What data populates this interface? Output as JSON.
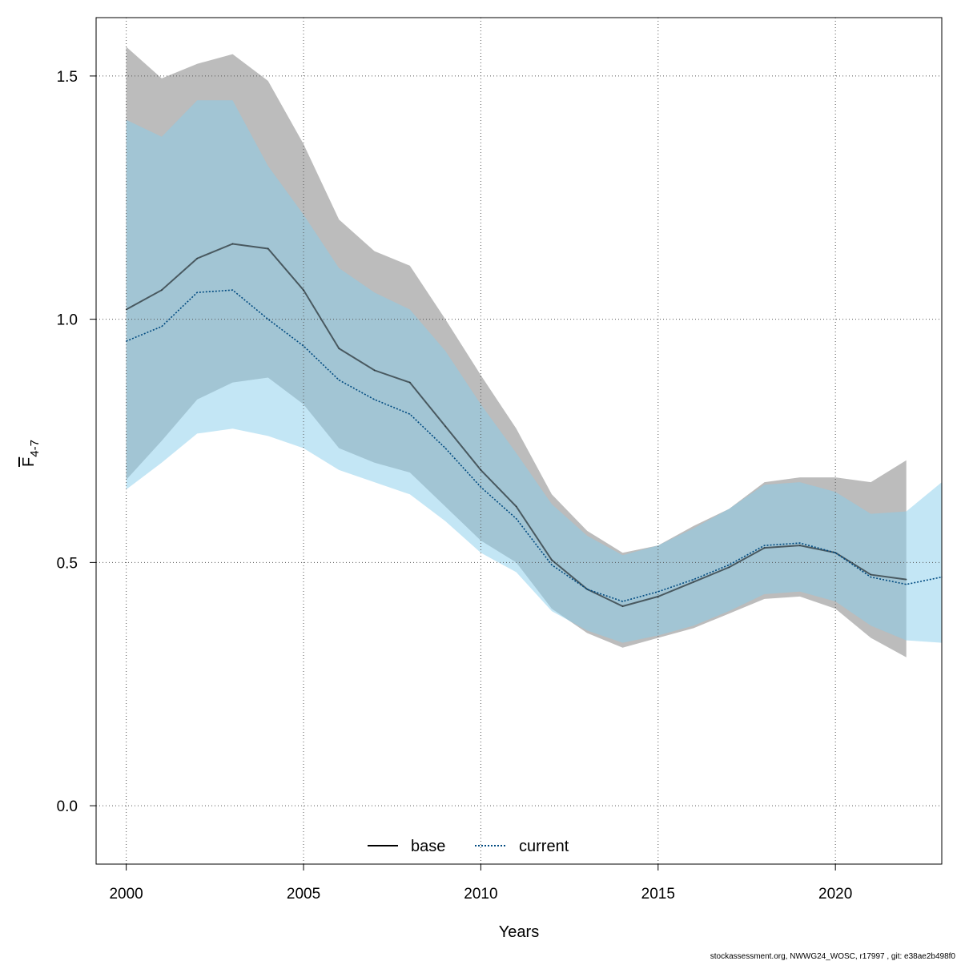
{
  "chart_data": {
    "type": "line",
    "xlabel": "Years",
    "ylabel": {
      "main": "F",
      "sub": "4-7"
    },
    "xlim": [
      1999.15,
      2023
    ],
    "ylim": [
      -0.12,
      1.62
    ],
    "x_ticks": [
      2000,
      2005,
      2010,
      2015,
      2020
    ],
    "x_tick_labels": [
      "2000",
      "2005",
      "2010",
      "2015",
      "2020"
    ],
    "y_ticks": [
      0.0,
      0.5,
      1.0,
      1.5
    ],
    "y_tick_labels": [
      "0.0",
      "0.5",
      "1.0",
      "1.5"
    ],
    "grid": true,
    "legend": {
      "placement": "bottom-center",
      "entries": [
        "base",
        "current"
      ]
    },
    "series": [
      {
        "name": "base",
        "color": "#000000",
        "band_color": "#8c8c8c",
        "line_style": "solid",
        "x": [
          2000,
          2001,
          2002,
          2003,
          2004,
          2005,
          2006,
          2007,
          2008,
          2009,
          2010,
          2011,
          2012,
          2013,
          2014,
          2015,
          2016,
          2017,
          2018,
          2019,
          2020,
          2021,
          2022
        ],
        "values": [
          1.02,
          1.06,
          1.125,
          1.155,
          1.145,
          1.06,
          0.94,
          0.895,
          0.87,
          0.78,
          0.69,
          0.615,
          0.505,
          0.445,
          0.41,
          0.43,
          0.46,
          0.49,
          0.53,
          0.535,
          0.52,
          0.475,
          0.465
        ],
        "lower": [
          0.67,
          0.75,
          0.835,
          0.87,
          0.88,
          0.825,
          0.735,
          0.705,
          0.685,
          0.615,
          0.545,
          0.5,
          0.405,
          0.355,
          0.325,
          0.345,
          0.365,
          0.395,
          0.425,
          0.43,
          0.405,
          0.345,
          0.305
        ],
        "upper": [
          1.56,
          1.495,
          1.525,
          1.545,
          1.49,
          1.36,
          1.205,
          1.14,
          1.11,
          1.0,
          0.885,
          0.775,
          0.64,
          0.565,
          0.52,
          0.535,
          0.575,
          0.61,
          0.665,
          0.675,
          0.675,
          0.665,
          0.71
        ]
      },
      {
        "name": "current",
        "color": "#004a80",
        "band_color": "#87ceeb",
        "line_style": "dotted",
        "x": [
          2000,
          2001,
          2002,
          2003,
          2004,
          2005,
          2006,
          2007,
          2008,
          2009,
          2010,
          2011,
          2012,
          2013,
          2014,
          2015,
          2016,
          2017,
          2018,
          2019,
          2020,
          2021,
          2022,
          2023
        ],
        "values": [
          0.955,
          0.985,
          1.055,
          1.06,
          1.0,
          0.945,
          0.875,
          0.835,
          0.805,
          0.735,
          0.655,
          0.59,
          0.495,
          0.445,
          0.42,
          0.44,
          0.465,
          0.495,
          0.535,
          0.54,
          0.52,
          0.47,
          0.455,
          0.47
        ],
        "lower": [
          0.65,
          0.705,
          0.765,
          0.775,
          0.76,
          0.735,
          0.69,
          0.665,
          0.64,
          0.585,
          0.52,
          0.48,
          0.4,
          0.36,
          0.335,
          0.35,
          0.37,
          0.4,
          0.435,
          0.44,
          0.42,
          0.37,
          0.34,
          0.335
        ],
        "upper": [
          1.41,
          1.375,
          1.45,
          1.45,
          1.315,
          1.215,
          1.105,
          1.055,
          1.02,
          0.935,
          0.825,
          0.725,
          0.62,
          0.555,
          0.515,
          0.535,
          0.57,
          0.61,
          0.66,
          0.665,
          0.645,
          0.6,
          0.605,
          0.665
        ]
      }
    ]
  },
  "footer": "stockassessment.org, NWWG24_WOSC, r17997 , git: e38ae2b498f0"
}
